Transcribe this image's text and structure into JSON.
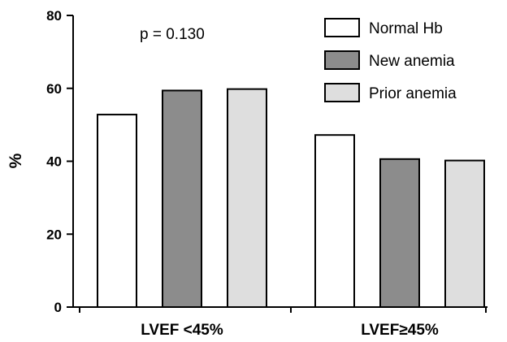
{
  "chart_data": {
    "type": "bar",
    "categories": [
      "LVEF <45%",
      "LVEF≥45%"
    ],
    "series": [
      {
        "name": "Normal Hb",
        "values": [
          52.8,
          47.2
        ]
      },
      {
        "name": "New anemia",
        "values": [
          59.4,
          40.6
        ]
      },
      {
        "name": "Prior anemia",
        "values": [
          59.8,
          40.2
        ]
      }
    ],
    "ylabel": "%",
    "ylim": [
      0,
      80
    ],
    "yticks": [
      0,
      20,
      40,
      60,
      80
    ],
    "annotation": "p = 0.130",
    "legend_position": "top-right",
    "grid": false
  },
  "colors": {
    "Normal Hb": "#ffffff",
    "New anemia": "#8c8c8c",
    "Prior anemia": "#dedede",
    "stroke": "#000000"
  }
}
